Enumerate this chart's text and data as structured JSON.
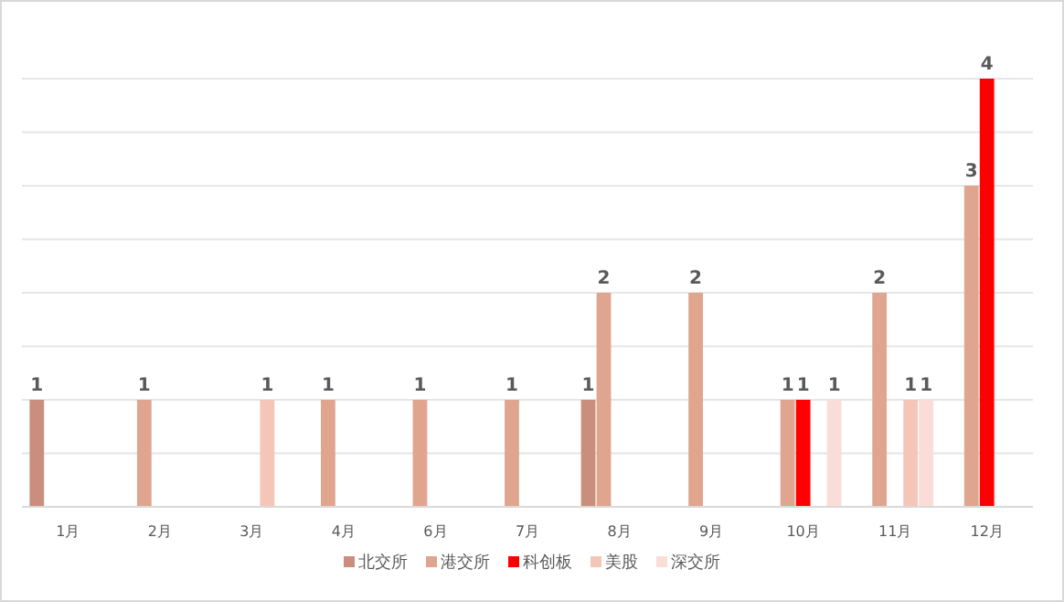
{
  "chart_data": {
    "type": "bar",
    "categories": [
      "1月",
      "2月",
      "3月",
      "4月",
      "6月",
      "7月",
      "8月",
      "9月",
      "10月",
      "11月",
      "12月"
    ],
    "series": [
      {
        "name": "北交所",
        "color": "#c98f7c",
        "values": [
          1,
          null,
          null,
          null,
          null,
          null,
          1,
          null,
          null,
          null,
          null
        ]
      },
      {
        "name": "港交所",
        "color": "#e0a58f",
        "values": [
          null,
          1,
          null,
          1,
          1,
          1,
          2,
          2,
          1,
          2,
          3
        ]
      },
      {
        "name": "科创板",
        "color": "#ff0000",
        "values": [
          null,
          null,
          null,
          null,
          null,
          null,
          null,
          null,
          1,
          null,
          4
        ]
      },
      {
        "name": "美股",
        "color": "#f4c6b8",
        "values": [
          null,
          null,
          1,
          null,
          null,
          null,
          null,
          null,
          null,
          1,
          null
        ]
      },
      {
        "name": "深交所",
        "color": "#f9ddd6",
        "values": [
          null,
          null,
          null,
          null,
          null,
          null,
          null,
          null,
          1,
          1,
          null
        ]
      }
    ],
    "ylim": [
      0,
      4
    ],
    "yticks": [
      {
        "value": 0,
        "label": null
      },
      {
        "value": 0.5,
        "label": null
      },
      {
        "value": 1,
        "label": null
      },
      {
        "value": 1.5,
        "label": null
      },
      {
        "value": 2,
        "label": null
      },
      {
        "value": 2.5,
        "label": null
      },
      {
        "value": 3,
        "label": null
      },
      {
        "value": 3.5,
        "label": null
      },
      {
        "value": 4,
        "label": null
      }
    ],
    "tick_labels": "x",
    "grid": "y",
    "data_labels": true,
    "legend": "bottom"
  }
}
